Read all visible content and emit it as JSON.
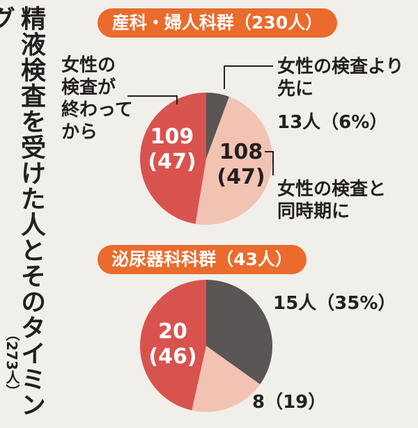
{
  "title": "精液検査を受けた人とそのタイミング",
  "total_label": "（273人）",
  "chart_data": [
    {
      "type": "pie",
      "title": "産科・婦人科群（230人）",
      "slices": [
        {
          "label": "女性の検査より先に",
          "count": 13,
          "percent": 6,
          "count_text": "13人（6%）",
          "color": "#5a5655"
        },
        {
          "label": "女性の検査と同時期に",
          "count": 108,
          "percent": 47,
          "count_text": "108",
          "percent_text": "(47)",
          "color": "#f2c3b3"
        },
        {
          "label": "女性の検査が終わってから",
          "count": 109,
          "percent": 47,
          "count_text": "109",
          "percent_text": "(47)",
          "color": "#d9534e"
        }
      ]
    },
    {
      "type": "pie",
      "title": "泌尿器科科群（43人）",
      "slices": [
        {
          "count": 15,
          "percent": 35,
          "count_text": "15人（35%）",
          "color": "#5a5655"
        },
        {
          "count": 8,
          "percent": 19,
          "count_text": "8（19）",
          "color": "#f2c3b3"
        },
        {
          "count": 20,
          "percent": 46,
          "count_text": "20",
          "percent_text": "(46)",
          "color": "#d9534e"
        }
      ]
    }
  ],
  "labels": {
    "before_line1": "女性の検査より",
    "before_line2": "先に",
    "same_line1": "女性の検査と",
    "same_line2": "同時期に",
    "after_line1": "女性の",
    "after_line2": "検査が",
    "after_line3": "終わって",
    "after_line4": "から"
  },
  "colors": {
    "accent": "#ea6b2c",
    "dark": "#5a5655",
    "light": "#f2c3b3",
    "red": "#d9534e",
    "background": "#f1efea"
  }
}
